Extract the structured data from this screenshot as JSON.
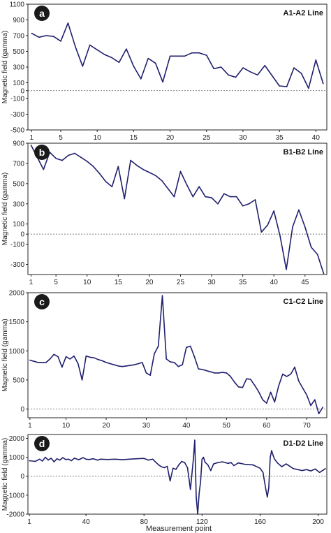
{
  "figure": {
    "x_axis_label": "Measurement point",
    "line_color": "#1f1f6e",
    "zero_line_color": "#555555"
  },
  "chart_data": [
    {
      "type": "line",
      "panel_letter": "a",
      "title": "A1-A2 Line",
      "ylabel": "Magnetic field (gamma)",
      "xlabel": "",
      "ylim": [
        -500,
        1100
      ],
      "xlim": [
        0.5,
        41.5
      ],
      "yticks": [
        -500,
        -300,
        -100,
        0,
        100,
        300,
        500,
        700,
        900,
        1100
      ],
      "xticks": [
        1,
        5,
        10,
        15,
        20,
        25,
        30,
        35,
        40
      ],
      "zero_line": true,
      "x": [
        1,
        2,
        3,
        4,
        5,
        6,
        7,
        8,
        9,
        10,
        11,
        12,
        13,
        14,
        15,
        16,
        17,
        18,
        19,
        20,
        21,
        22,
        23,
        24,
        25,
        26,
        27,
        28,
        29,
        30,
        31,
        32,
        33,
        34,
        35,
        36,
        37,
        38,
        39,
        40,
        41
      ],
      "values": [
        730,
        680,
        700,
        690,
        630,
        860,
        560,
        310,
        580,
        520,
        460,
        420,
        360,
        530,
        310,
        150,
        410,
        350,
        110,
        440,
        440,
        440,
        480,
        480,
        450,
        280,
        300,
        200,
        170,
        290,
        240,
        200,
        320,
        190,
        60,
        50,
        290,
        220,
        30,
        390,
        90
      ]
    },
    {
      "type": "line",
      "panel_letter": "b",
      "title": "B1-B2 Line",
      "ylabel": "Magnetic field (gamma)",
      "xlabel": "",
      "ylim": [
        -400,
        900
      ],
      "xlim": [
        0.5,
        48.5
      ],
      "yticks": [
        -300,
        -100,
        0,
        100,
        300,
        500,
        700,
        900
      ],
      "xticks": [
        1,
        5,
        10,
        15,
        20,
        25,
        30,
        35,
        40,
        45
      ],
      "zero_line": true,
      "x": [
        1,
        2,
        3,
        4,
        5,
        6,
        7,
        8,
        9,
        10,
        11,
        12,
        13,
        14,
        15,
        16,
        17,
        18,
        19,
        20,
        21,
        22,
        23,
        24,
        25,
        26,
        27,
        28,
        29,
        30,
        31,
        32,
        33,
        34,
        35,
        36,
        37,
        38,
        39,
        40,
        41,
        42,
        43,
        44,
        45,
        46,
        47,
        48
      ],
      "values": [
        880,
        760,
        640,
        810,
        750,
        730,
        780,
        800,
        760,
        720,
        670,
        600,
        520,
        470,
        670,
        350,
        730,
        680,
        640,
        610,
        580,
        530,
        450,
        370,
        620,
        490,
        370,
        470,
        370,
        360,
        300,
        400,
        370,
        370,
        280,
        300,
        340,
        20,
        90,
        230,
        -20,
        -350,
        70,
        240,
        70,
        -130,
        -200,
        -390
      ]
    },
    {
      "type": "line",
      "panel_letter": "c",
      "title": "C1-C2 Line",
      "ylabel": "Magnetic field (gamma)",
      "xlabel": "",
      "ylim": [
        -150,
        2000
      ],
      "xlim": [
        0.5,
        75
      ],
      "yticks": [
        0,
        500,
        1000,
        1500,
        2000
      ],
      "xticks": [
        1,
        10,
        20,
        30,
        40,
        50,
        60,
        70
      ],
      "zero_line": true,
      "x": [
        1,
        2,
        3,
        4,
        5,
        6,
        7,
        8,
        9,
        10,
        11,
        12,
        13,
        14,
        15,
        16,
        17,
        18,
        19,
        20,
        21,
        22,
        23,
        24,
        25,
        26,
        27,
        28,
        29,
        30,
        31,
        32,
        33,
        34,
        35,
        36,
        37,
        38,
        39,
        40,
        41,
        42,
        43,
        44,
        45,
        46,
        47,
        48,
        49,
        50,
        51,
        52,
        53,
        54,
        55,
        56,
        57,
        58,
        59,
        60,
        61,
        62,
        63,
        64,
        65,
        66,
        67,
        68,
        69,
        70,
        71,
        72,
        73,
        74
      ],
      "values": [
        840,
        820,
        800,
        800,
        800,
        860,
        940,
        900,
        720,
        900,
        860,
        910,
        780,
        500,
        910,
        890,
        880,
        850,
        830,
        800,
        780,
        760,
        740,
        730,
        740,
        750,
        760,
        780,
        800,
        620,
        580,
        950,
        1080,
        1950,
        860,
        810,
        800,
        730,
        760,
        1060,
        1080,
        900,
        690,
        680,
        660,
        640,
        620,
        620,
        630,
        620,
        560,
        460,
        380,
        370,
        520,
        510,
        410,
        300,
        160,
        100,
        290,
        120,
        400,
        600,
        560,
        600,
        720,
        480,
        360,
        240,
        60,
        160,
        -80,
        30
      ]
    },
    {
      "type": "line",
      "panel_letter": "d",
      "title": "D1-D2 Line",
      "ylabel": "Magnetic field (gamma)",
      "xlabel": "Measurement point",
      "ylim": [
        -2000,
        2200
      ],
      "xlim": [
        0,
        206
      ],
      "yticks": [
        -2000,
        -1000,
        0,
        1000,
        2000
      ],
      "xticks": [
        1,
        40,
        80,
        120,
        160,
        200
      ],
      "zero_line": true,
      "x": [
        1,
        5,
        8,
        10,
        12,
        14,
        16,
        18,
        20,
        22,
        24,
        26,
        28,
        30,
        32,
        35,
        38,
        40,
        42,
        45,
        48,
        50,
        55,
        60,
        65,
        70,
        75,
        80,
        83,
        86,
        88,
        90,
        92,
        94,
        96,
        98,
        100,
        102,
        104,
        106,
        108,
        110,
        112,
        114,
        115,
        116,
        117,
        118,
        119,
        120,
        121,
        122,
        124,
        126,
        128,
        130,
        134,
        138,
        140,
        142,
        145,
        150,
        155,
        160,
        162,
        164,
        165,
        166,
        167,
        168,
        169,
        170,
        172,
        175,
        178,
        180,
        183,
        186,
        189,
        192,
        195,
        198,
        201,
        205
      ],
      "values": [
        820,
        780,
        900,
        800,
        1000,
        850,
        950,
        760,
        920,
        850,
        980,
        880,
        900,
        820,
        950,
        870,
        980,
        900,
        880,
        920,
        850,
        900,
        880,
        900,
        870,
        900,
        920,
        940,
        850,
        900,
        750,
        600,
        500,
        450,
        520,
        -250,
        420,
        360,
        600,
        780,
        720,
        450,
        -700,
        900,
        1900,
        -1100,
        -2000,
        -900,
        -300,
        900,
        1000,
        750,
        600,
        300,
        650,
        700,
        760,
        680,
        720,
        560,
        700,
        620,
        600,
        420,
        200,
        -700,
        -1100,
        -600,
        1000,
        1350,
        1100,
        900,
        700,
        500,
        650,
        550,
        400,
        350,
        300,
        350,
        280,
        380,
        200,
        400
      ]
    }
  ]
}
